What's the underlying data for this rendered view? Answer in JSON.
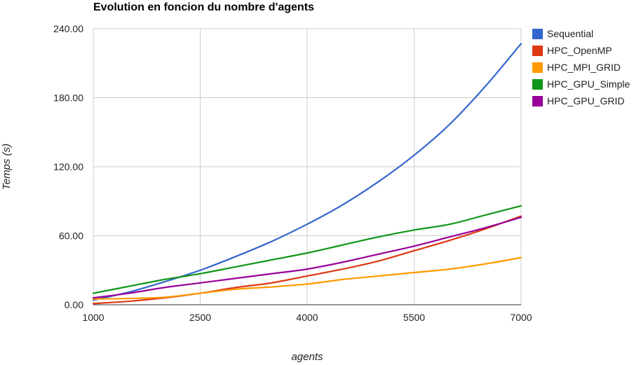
{
  "chart_data": {
    "type": "line",
    "title": "Evolution en foncion du nombre d'agents",
    "xlabel": "agents",
    "ylabel": "Temps (s)",
    "x": [
      1000,
      1500,
      2000,
      2500,
      3000,
      3500,
      4000,
      4500,
      5000,
      5500,
      6000,
      6500,
      7000
    ],
    "xticks": [
      "1000",
      "2500",
      "4000",
      "5500",
      "7000"
    ],
    "xlim": [
      1000,
      7000
    ],
    "yticks": [
      "0.00",
      "60.00",
      "120.00",
      "180.00",
      "240.00"
    ],
    "ylim": [
      0,
      240
    ],
    "grid": true,
    "legend_position": "right",
    "series": [
      {
        "name": "Sequential",
        "color": "#3366cc",
        "values": [
          4,
          11,
          20,
          30,
          42,
          55,
          70,
          87,
          107,
          130,
          157,
          190,
          227
        ]
      },
      {
        "name": "HPC_OpenMP",
        "color": "#dc3912",
        "values": [
          1,
          3,
          6,
          10,
          15,
          19,
          25,
          31,
          38,
          47,
          56,
          66,
          77
        ]
      },
      {
        "name": "HPC_MPI_GRID",
        "color": "#ff9900",
        "values": [
          5,
          5.5,
          6.5,
          10,
          13.5,
          15.5,
          18,
          22,
          25,
          28,
          31,
          35.5,
          41
        ]
      },
      {
        "name": "HPC_GPU_Simple",
        "color": "#109618",
        "values": [
          10,
          16,
          22,
          27,
          33,
          39,
          45,
          52,
          59,
          65,
          70,
          78,
          86
        ]
      },
      {
        "name": "HPC_GPU_GRID",
        "color": "#990099",
        "values": [
          6,
          10,
          15,
          19,
          23,
          27,
          31,
          37,
          44,
          51,
          59,
          67,
          76
        ]
      }
    ]
  }
}
